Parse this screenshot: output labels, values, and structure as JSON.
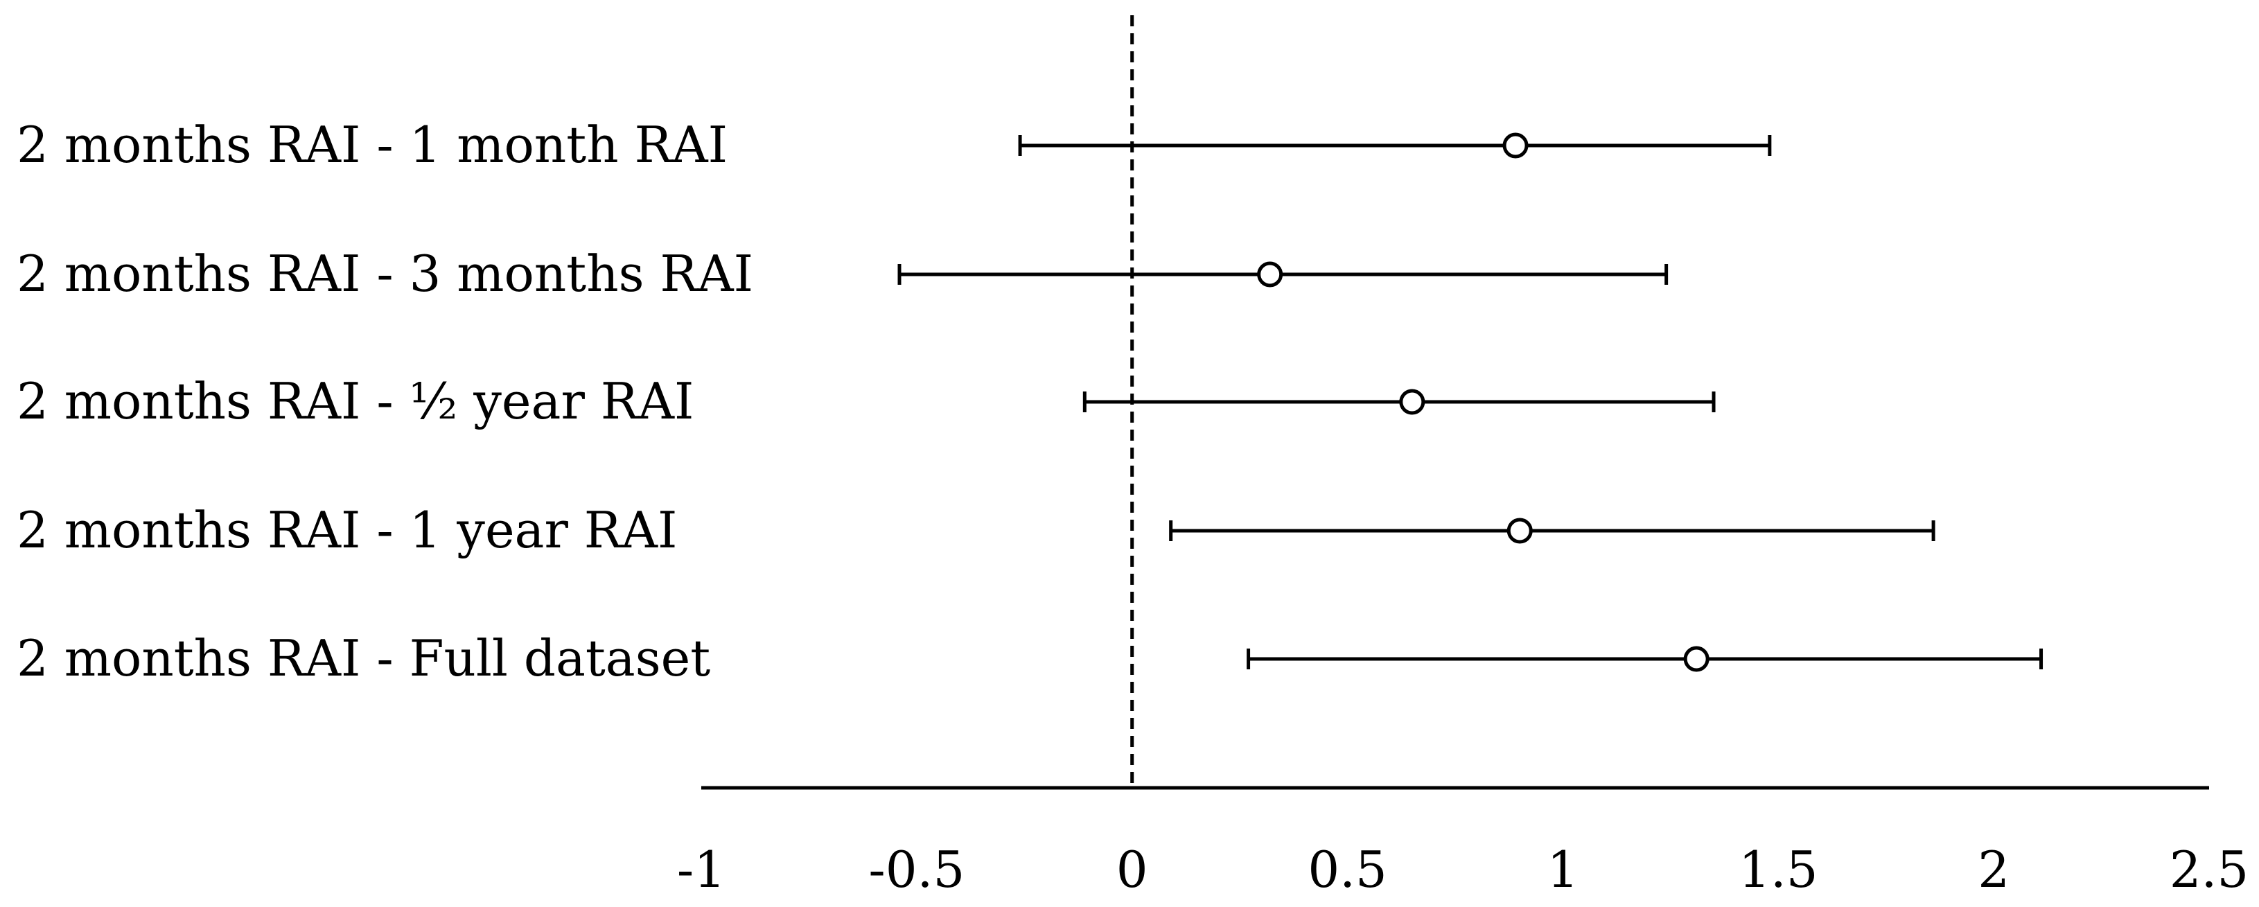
{
  "chart_data": {
    "type": "scatter",
    "subtype": "forest-plot",
    "orientation": "horizontal",
    "rows": [
      {
        "label": "2 months RAI - 1 month RAI",
        "estimate": 0.89,
        "lower": -0.26,
        "upper": 1.48
      },
      {
        "label": "2 months RAI - 3 months RAI",
        "estimate": 0.32,
        "lower": -0.54,
        "upper": 1.24
      },
      {
        "label": "2 months RAI - ½ year RAI",
        "estimate": 0.65,
        "lower": -0.11,
        "upper": 1.35
      },
      {
        "label": "2 months RAI - 1 year RAI",
        "estimate": 0.9,
        "lower": 0.09,
        "upper": 1.86
      },
      {
        "label": "2 months RAI - Full dataset",
        "estimate": 1.31,
        "lower": 0.27,
        "upper": 2.11
      }
    ],
    "xlim": [
      -1,
      2.5
    ],
    "xticks": [
      -1,
      -0.5,
      0,
      0.5,
      1,
      1.5,
      2,
      2.5
    ],
    "xtick_labels": [
      "-1",
      "-0.5",
      "0",
      "0.5",
      "1",
      "1.5",
      "2",
      "2.5"
    ],
    "reference_line": 0,
    "reference_line_style": "dashed",
    "marker": "open-circle",
    "grid": false,
    "title": "",
    "xlabel": "",
    "ylabel": ""
  }
}
